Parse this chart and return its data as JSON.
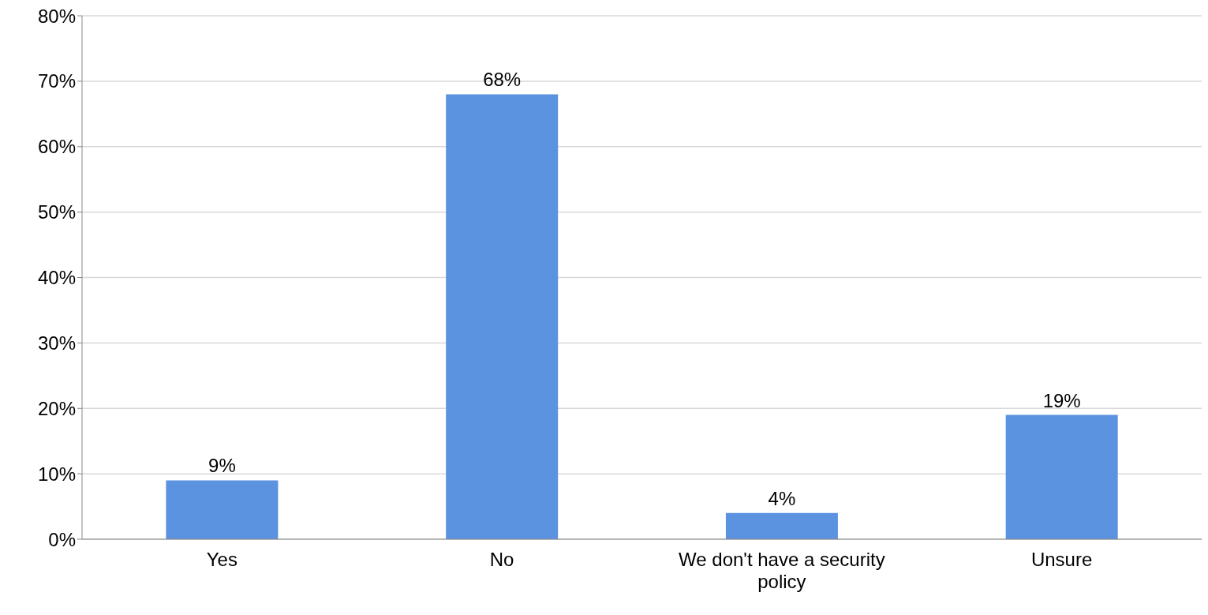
{
  "chart_data": {
    "type": "bar",
    "categories": [
      "Yes",
      "No",
      "We don't have a security policy",
      "Unsure"
    ],
    "values": [
      9,
      68,
      4,
      19
    ],
    "value_labels": [
      "9%",
      "68%",
      "4%",
      "19%"
    ],
    "color": "#5b93e0",
    "ylim": [
      0,
      80
    ],
    "yticks": [
      {
        "value": 0,
        "label": "0%"
      },
      {
        "value": 10,
        "label": "10%"
      },
      {
        "value": 20,
        "label": "20%"
      },
      {
        "value": 30,
        "label": "30%"
      },
      {
        "value": 40,
        "label": "40%"
      },
      {
        "value": 50,
        "label": "50%"
      },
      {
        "value": 60,
        "label": "60%"
      },
      {
        "value": 70,
        "label": "70%"
      },
      {
        "value": 80,
        "label": "80%"
      }
    ],
    "grid": "y",
    "legend": false
  }
}
